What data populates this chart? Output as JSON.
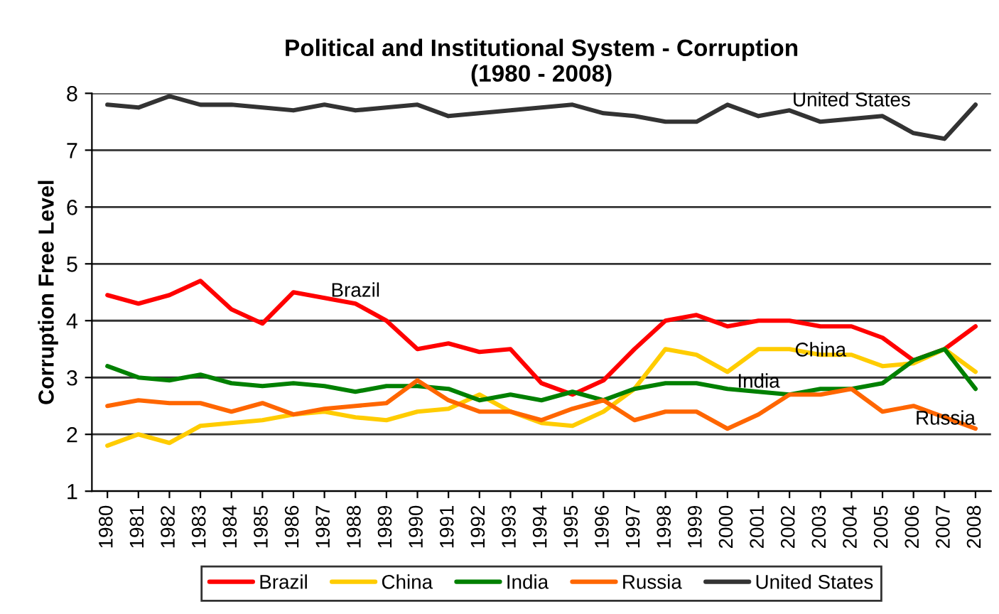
{
  "chart_data": {
    "type": "line",
    "title": "Political and Institutional System - Corruption\n(1980 - 2008)",
    "ylabel": "Corruption Free Level",
    "categories": [
      "1980",
      "1981",
      "1982",
      "1983",
      "1984",
      "1985",
      "1986",
      "1987",
      "1988",
      "1989",
      "1990",
      "1991",
      "1992",
      "1993",
      "1994",
      "1995",
      "1996",
      "1997",
      "1998",
      "1999",
      "2000",
      "2001",
      "2002",
      "2003",
      "2004",
      "2005",
      "2006",
      "2007",
      "2008"
    ],
    "series": [
      {
        "name": "Brazil",
        "color": "#ff0000",
        "values": [
          4.45,
          4.3,
          4.45,
          4.7,
          4.2,
          3.95,
          4.5,
          4.4,
          4.3,
          4.0,
          3.5,
          3.6,
          3.45,
          3.5,
          2.9,
          2.7,
          2.95,
          3.5,
          4.0,
          4.1,
          3.9,
          4.0,
          4.0,
          3.9,
          3.9,
          3.7,
          3.3,
          3.5,
          3.9
        ]
      },
      {
        "name": "China",
        "color": "#ffcc00",
        "values": [
          1.8,
          2.0,
          1.85,
          2.15,
          2.2,
          2.25,
          2.35,
          2.4,
          2.3,
          2.25,
          2.4,
          2.45,
          2.7,
          2.4,
          2.2,
          2.15,
          2.4,
          2.8,
          3.5,
          3.4,
          3.1,
          3.5,
          3.5,
          3.4,
          3.4,
          3.2,
          3.25,
          3.5,
          3.1
        ]
      },
      {
        "name": "India",
        "color": "#008000",
        "values": [
          3.2,
          3.0,
          2.95,
          3.05,
          2.9,
          2.85,
          2.9,
          2.85,
          2.75,
          2.85,
          2.85,
          2.8,
          2.6,
          2.7,
          2.6,
          2.75,
          2.6,
          2.8,
          2.9,
          2.9,
          2.8,
          2.75,
          2.7,
          2.8,
          2.8,
          2.9,
          3.3,
          3.5,
          2.8
        ]
      },
      {
        "name": "Russia",
        "color": "#ff6600",
        "values": [
          2.5,
          2.6,
          2.55,
          2.55,
          2.4,
          2.55,
          2.35,
          2.45,
          2.5,
          2.55,
          2.95,
          2.6,
          2.4,
          2.4,
          2.25,
          2.45,
          2.6,
          2.25,
          2.4,
          2.4,
          2.1,
          2.35,
          2.7,
          2.7,
          2.8,
          2.4,
          2.5,
          2.3,
          2.1
        ]
      },
      {
        "name": "United States",
        "color": "#333333",
        "values": [
          7.8,
          7.75,
          7.95,
          7.8,
          7.8,
          7.75,
          7.7,
          7.8,
          7.7,
          7.75,
          7.8,
          7.6,
          7.65,
          7.7,
          7.75,
          7.8,
          7.65,
          7.6,
          7.5,
          7.5,
          7.8,
          7.6,
          7.7,
          7.5,
          7.55,
          7.6,
          7.3,
          7.2,
          7.8
        ]
      }
    ],
    "annotations": [
      {
        "text": "Brazil",
        "x": "1988",
        "y": 4.35
      },
      {
        "text": "United States",
        "x": "2004",
        "y": 7.7
      },
      {
        "text": "China",
        "x": "2003",
        "y": 3.3
      },
      {
        "text": "India",
        "x": "2001",
        "y": 2.75
      },
      {
        "text": "Russia",
        "x": "2008",
        "y": 2.1
      }
    ],
    "ylim": [
      1,
      8
    ],
    "yticks": [
      1,
      2,
      3,
      4,
      5,
      6,
      7,
      8
    ],
    "grid": "y",
    "legend": "bottom",
    "marker": "none",
    "line_style": "solid"
  }
}
